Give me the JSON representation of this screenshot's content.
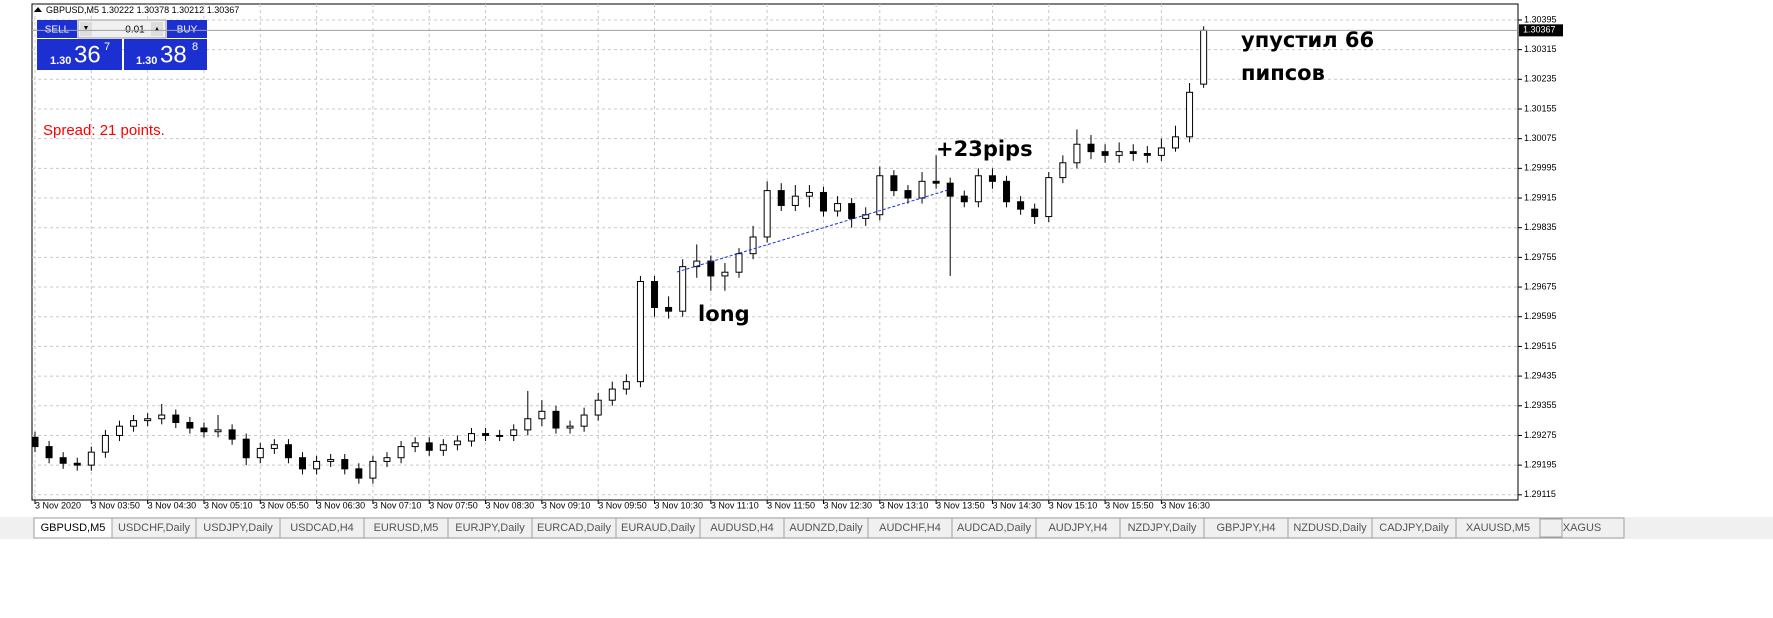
{
  "header": {
    "symbol": "GBPUSD,M5",
    "open": 1.30222,
    "high": 1.30378,
    "low": 1.30212,
    "close": 1.30367
  },
  "trade_panel": {
    "sell_label": "SELL",
    "buy_label": "BUY",
    "lot": "0.01",
    "sell_price": {
      "big": "1.30",
      "pips": "36",
      "point": "7"
    },
    "buy_price": {
      "big": "1.30",
      "pips": "38",
      "point": "8"
    }
  },
  "spread": "Spread: 21 points.",
  "annotations": {
    "missed_line1": "упустил 66",
    "missed_line2": "пипсов",
    "profit": "+23pips",
    "entry": "long"
  },
  "current_price": 1.30367,
  "tabs": [
    "GBPUSD,M5",
    "USDCHF,Daily",
    "USDJPY,Daily",
    "USDCAD,H4",
    "EURUSD,M5",
    "EURJPY,Daily",
    "EURCAD,Daily",
    "EURAUD,Daily",
    "AUDUSD,H4",
    "AUDNZD,Daily",
    "AUDCHF,H4",
    "AUDCAD,Daily",
    "AUDJPY,H4",
    "NZDJPY,Daily",
    "GBPJPY,H4",
    "NZDUSD,Daily",
    "CADJPY,Daily",
    "XAUUSD,M5",
    "XAGUS"
  ],
  "chart_data": {
    "type": "candlestick",
    "categories": [
      "3 Nov 2020",
      null,
      null,
      null,
      "3 Nov 03:50",
      null,
      null,
      null,
      "3 Nov 04:30",
      null,
      null,
      null,
      "3 Nov 05:10",
      null,
      null,
      null,
      "3 Nov 05:50",
      null,
      null,
      null,
      "3 Nov 06:30",
      null,
      null,
      null,
      "3 Nov 07:10",
      null,
      null,
      null,
      "3 Nov 07:50",
      null,
      null,
      null,
      "3 Nov 08:30",
      null,
      null,
      null,
      "3 Nov 09:10",
      null,
      null,
      null,
      "3 Nov 09:50",
      null,
      null,
      null,
      "3 Nov 10:30",
      null,
      null,
      null,
      "3 Nov 11:10",
      null,
      null,
      null,
      "3 Nov 11:50",
      null,
      null,
      null,
      "3 Nov 12:30",
      null,
      null,
      null,
      "3 Nov 13:10",
      null,
      null,
      null,
      "3 Nov 13:50",
      null,
      null,
      null,
      "3 Nov 14:30",
      null,
      null,
      null,
      "3 Nov 15:10",
      null,
      null,
      null,
      "3 Nov 15:50",
      null,
      null,
      null,
      "3 Nov 16:30",
      null,
      null,
      null
    ],
    "series": [
      {
        "name": "GBPUSD,M5",
        "up_color": "#ffffff",
        "down_color": "#000000",
        "outline": "#000000",
        "open": [
          1.2927,
          1.29245,
          1.29215,
          1.292,
          1.29195,
          1.2923,
          1.29275,
          1.293,
          1.29315,
          1.2932,
          1.2933,
          1.2931,
          1.29295,
          1.29285,
          1.2929,
          1.29265,
          1.29215,
          1.2924,
          1.2925,
          1.29215,
          1.29185,
          1.29205,
          1.2921,
          1.29185,
          1.2916,
          1.29205,
          1.29215,
          1.29245,
          1.29255,
          1.29235,
          1.2925,
          1.2926,
          1.2928,
          1.29275,
          1.29275,
          1.2929,
          1.2932,
          1.2934,
          1.29295,
          1.293,
          1.2933,
          1.2937,
          1.294,
          1.2942,
          1.2969,
          1.2962,
          1.2961,
          1.2973,
          1.29745,
          1.29705,
          1.29715,
          1.29765,
          1.2981,
          1.29935,
          1.29895,
          1.2992,
          1.2993,
          1.2988,
          1.299,
          1.2986,
          1.2987,
          1.29975,
          1.29935,
          1.29915,
          1.2996,
          1.29955,
          1.2992,
          1.29905,
          1.29975,
          1.2996,
          1.29905,
          1.29885,
          1.29865,
          1.2997,
          1.3001,
          1.3006,
          1.3004,
          1.3003,
          1.3004,
          1.30035,
          1.3003,
          1.3005,
          1.3008,
          1.30222
        ],
        "high": [
          1.29285,
          1.2926,
          1.2923,
          1.29215,
          1.29245,
          1.2929,
          1.29315,
          1.2933,
          1.29335,
          1.2936,
          1.29345,
          1.29325,
          1.2931,
          1.2933,
          1.29305,
          1.2928,
          1.29255,
          1.29265,
          1.29265,
          1.2923,
          1.2922,
          1.29225,
          1.29225,
          1.292,
          1.2922,
          1.2923,
          1.2926,
          1.2927,
          1.2927,
          1.29265,
          1.29275,
          1.29295,
          1.29295,
          1.2929,
          1.29305,
          1.29395,
          1.2937,
          1.29355,
          1.29315,
          1.2935,
          1.2939,
          1.2942,
          1.2944,
          1.29705,
          1.29705,
          1.2965,
          1.2975,
          1.2979,
          1.2976,
          1.2974,
          1.2978,
          1.2984,
          1.2996,
          1.29955,
          1.2995,
          1.2995,
          1.29945,
          1.2992,
          1.29915,
          1.2989,
          1.3,
          1.2999,
          1.2995,
          1.29985,
          1.3003,
          1.2997,
          1.29935,
          1.29995,
          1.29995,
          1.29975,
          1.2992,
          1.299,
          1.29985,
          1.3003,
          1.301,
          1.30085,
          1.3006,
          1.30065,
          1.3006,
          1.30055,
          1.30075,
          1.3011,
          1.30225,
          1.30378
        ],
        "low": [
          1.2923,
          1.292,
          1.29185,
          1.2918,
          1.2918,
          1.29215,
          1.2926,
          1.29285,
          1.293,
          1.29305,
          1.29295,
          1.2928,
          1.2927,
          1.2927,
          1.2925,
          1.29195,
          1.292,
          1.29225,
          1.292,
          1.2917,
          1.2917,
          1.2919,
          1.2917,
          1.29145,
          1.29145,
          1.2919,
          1.292,
          1.2923,
          1.2922,
          1.2922,
          1.29235,
          1.29245,
          1.2926,
          1.2926,
          1.2926,
          1.29275,
          1.293,
          1.2928,
          1.2928,
          1.29285,
          1.29315,
          1.29355,
          1.29385,
          1.29405,
          1.29595,
          1.2959,
          1.29595,
          1.297,
          1.29665,
          1.29665,
          1.297,
          1.2975,
          1.29795,
          1.2988,
          1.2988,
          1.2989,
          1.29865,
          1.29865,
          1.29835,
          1.2984,
          1.29855,
          1.2992,
          1.299,
          1.299,
          1.2994,
          1.29705,
          1.2989,
          1.2989,
          1.2994,
          1.2989,
          1.2987,
          1.29845,
          1.2985,
          1.29955,
          1.29995,
          1.3002,
          1.3001,
          1.3001,
          1.30015,
          1.3001,
          1.30015,
          1.3004,
          1.30065,
          1.30212
        ],
        "close": [
          1.29245,
          1.29215,
          1.292,
          1.29195,
          1.2923,
          1.29275,
          1.293,
          1.29315,
          1.2932,
          1.2933,
          1.2931,
          1.29295,
          1.29285,
          1.2929,
          1.29265,
          1.29215,
          1.2924,
          1.2925,
          1.29215,
          1.29185,
          1.29205,
          1.2921,
          1.29185,
          1.2916,
          1.29205,
          1.29215,
          1.29245,
          1.29255,
          1.29235,
          1.2925,
          1.2926,
          1.2928,
          1.29275,
          1.29275,
          1.2929,
          1.2932,
          1.2934,
          1.29295,
          1.293,
          1.2933,
          1.2937,
          1.294,
          1.2942,
          1.2969,
          1.2962,
          1.2961,
          1.2973,
          1.29745,
          1.29705,
          1.29715,
          1.29765,
          1.2981,
          1.29935,
          1.29895,
          1.2992,
          1.2993,
          1.2988,
          1.299,
          1.2986,
          1.2987,
          1.29975,
          1.29935,
          1.29915,
          1.2996,
          1.29955,
          1.2992,
          1.29905,
          1.29975,
          1.2996,
          1.29905,
          1.29885,
          1.29865,
          1.2997,
          1.3001,
          1.3006,
          1.3004,
          1.3003,
          1.3004,
          1.30035,
          1.3003,
          1.3005,
          1.3008,
          1.302,
          1.30367
        ]
      }
    ],
    "ylim": [
      1.29101,
      1.30438
    ],
    "yticks": [
      1.29115,
      1.29195,
      1.29275,
      1.29355,
      1.29435,
      1.29515,
      1.29595,
      1.29675,
      1.29755,
      1.29835,
      1.29915,
      1.29995,
      1.30075,
      1.30155,
      1.30235,
      1.30315,
      1.30395
    ],
    "grid": true
  }
}
